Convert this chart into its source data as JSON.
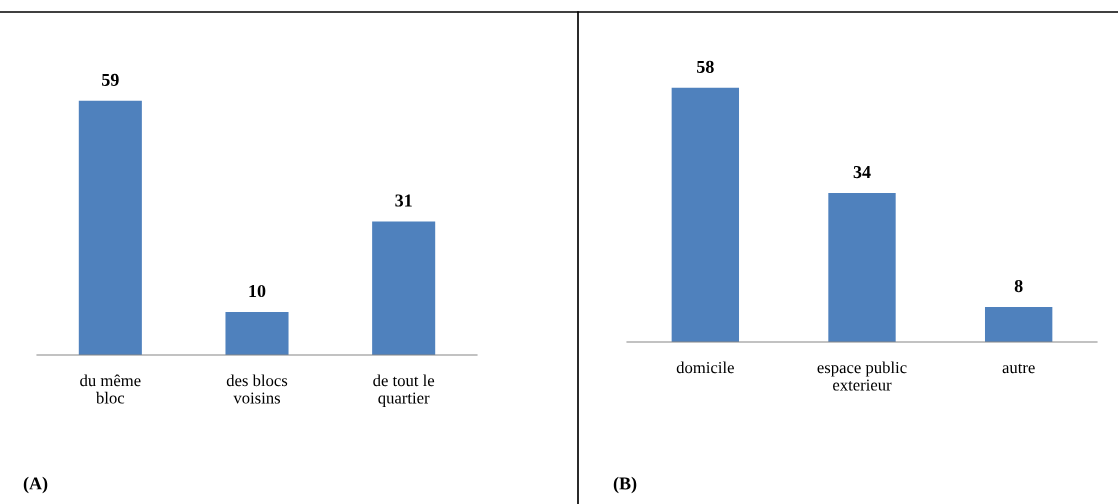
{
  "chart_data": [
    {
      "type": "bar",
      "categories": [
        "du même\nbloc",
        "des blocs\nvoisins",
        "de tout le\nquartier"
      ],
      "values": [
        59,
        10,
        31
      ],
      "color": "#4f81bd",
      "data_labels": true,
      "grid": false,
      "legend": false,
      "annotations": [
        "(A)"
      ]
    },
    {
      "type": "bar",
      "categories": [
        "domicile",
        "espace public\nexterieur",
        "autre"
      ],
      "values": [
        58,
        34,
        8
      ],
      "color": "#4f81bd",
      "data_labels": true,
      "grid": false,
      "legend": false,
      "annotations": [
        "(B)"
      ]
    }
  ]
}
